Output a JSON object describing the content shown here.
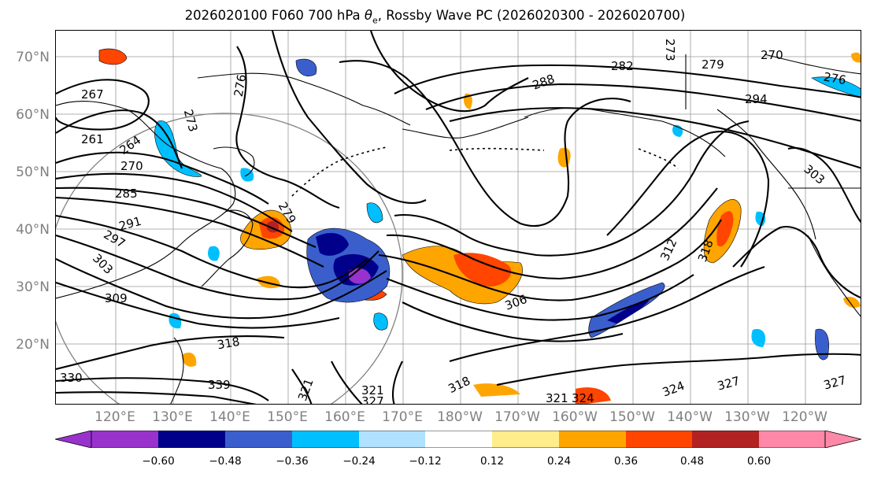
{
  "title": {
    "prefix": "2026020100 F060 700 hPa ",
    "theta": "θ",
    "sub": "e",
    "suffix": ", Rossby Wave PC (2026020300 - 2026020700)"
  },
  "lat_labels": [
    "70°N",
    "60°N",
    "50°N",
    "40°N",
    "30°N",
    "20°N"
  ],
  "lon_labels": [
    "120°E",
    "130°E",
    "140°E",
    "150°E",
    "160°E",
    "170°E",
    "180°W",
    "170°W",
    "160°W",
    "150°W",
    "140°W",
    "130°W",
    "120°W"
  ],
  "contour_labels": [
    "267",
    "261",
    "264",
    "270",
    "285",
    "291",
    "297",
    "303",
    "309",
    "318",
    "330",
    "339",
    "273",
    "276",
    "279",
    "288",
    "282",
    "279",
    "270",
    "276",
    "294",
    "303",
    "312",
    "318",
    "306",
    "324",
    "327",
    "327",
    "321",
    "324",
    "321",
    "327",
    "321",
    "318",
    "273"
  ],
  "colorbar": {
    "ticks": [
      "−0.60",
      "−0.48",
      "−0.36",
      "−0.24",
      "−0.12",
      "0.12",
      "0.24",
      "0.36",
      "0.48",
      "0.60"
    ],
    "colors": [
      "#9932cc",
      "#00008b",
      "#3a5fcd",
      "#00bfff",
      "#b0e2ff",
      "#ffffff",
      "#ffec8b",
      "#ffa500",
      "#ff4500",
      "#b22222",
      "#ff88a8"
    ]
  }
}
